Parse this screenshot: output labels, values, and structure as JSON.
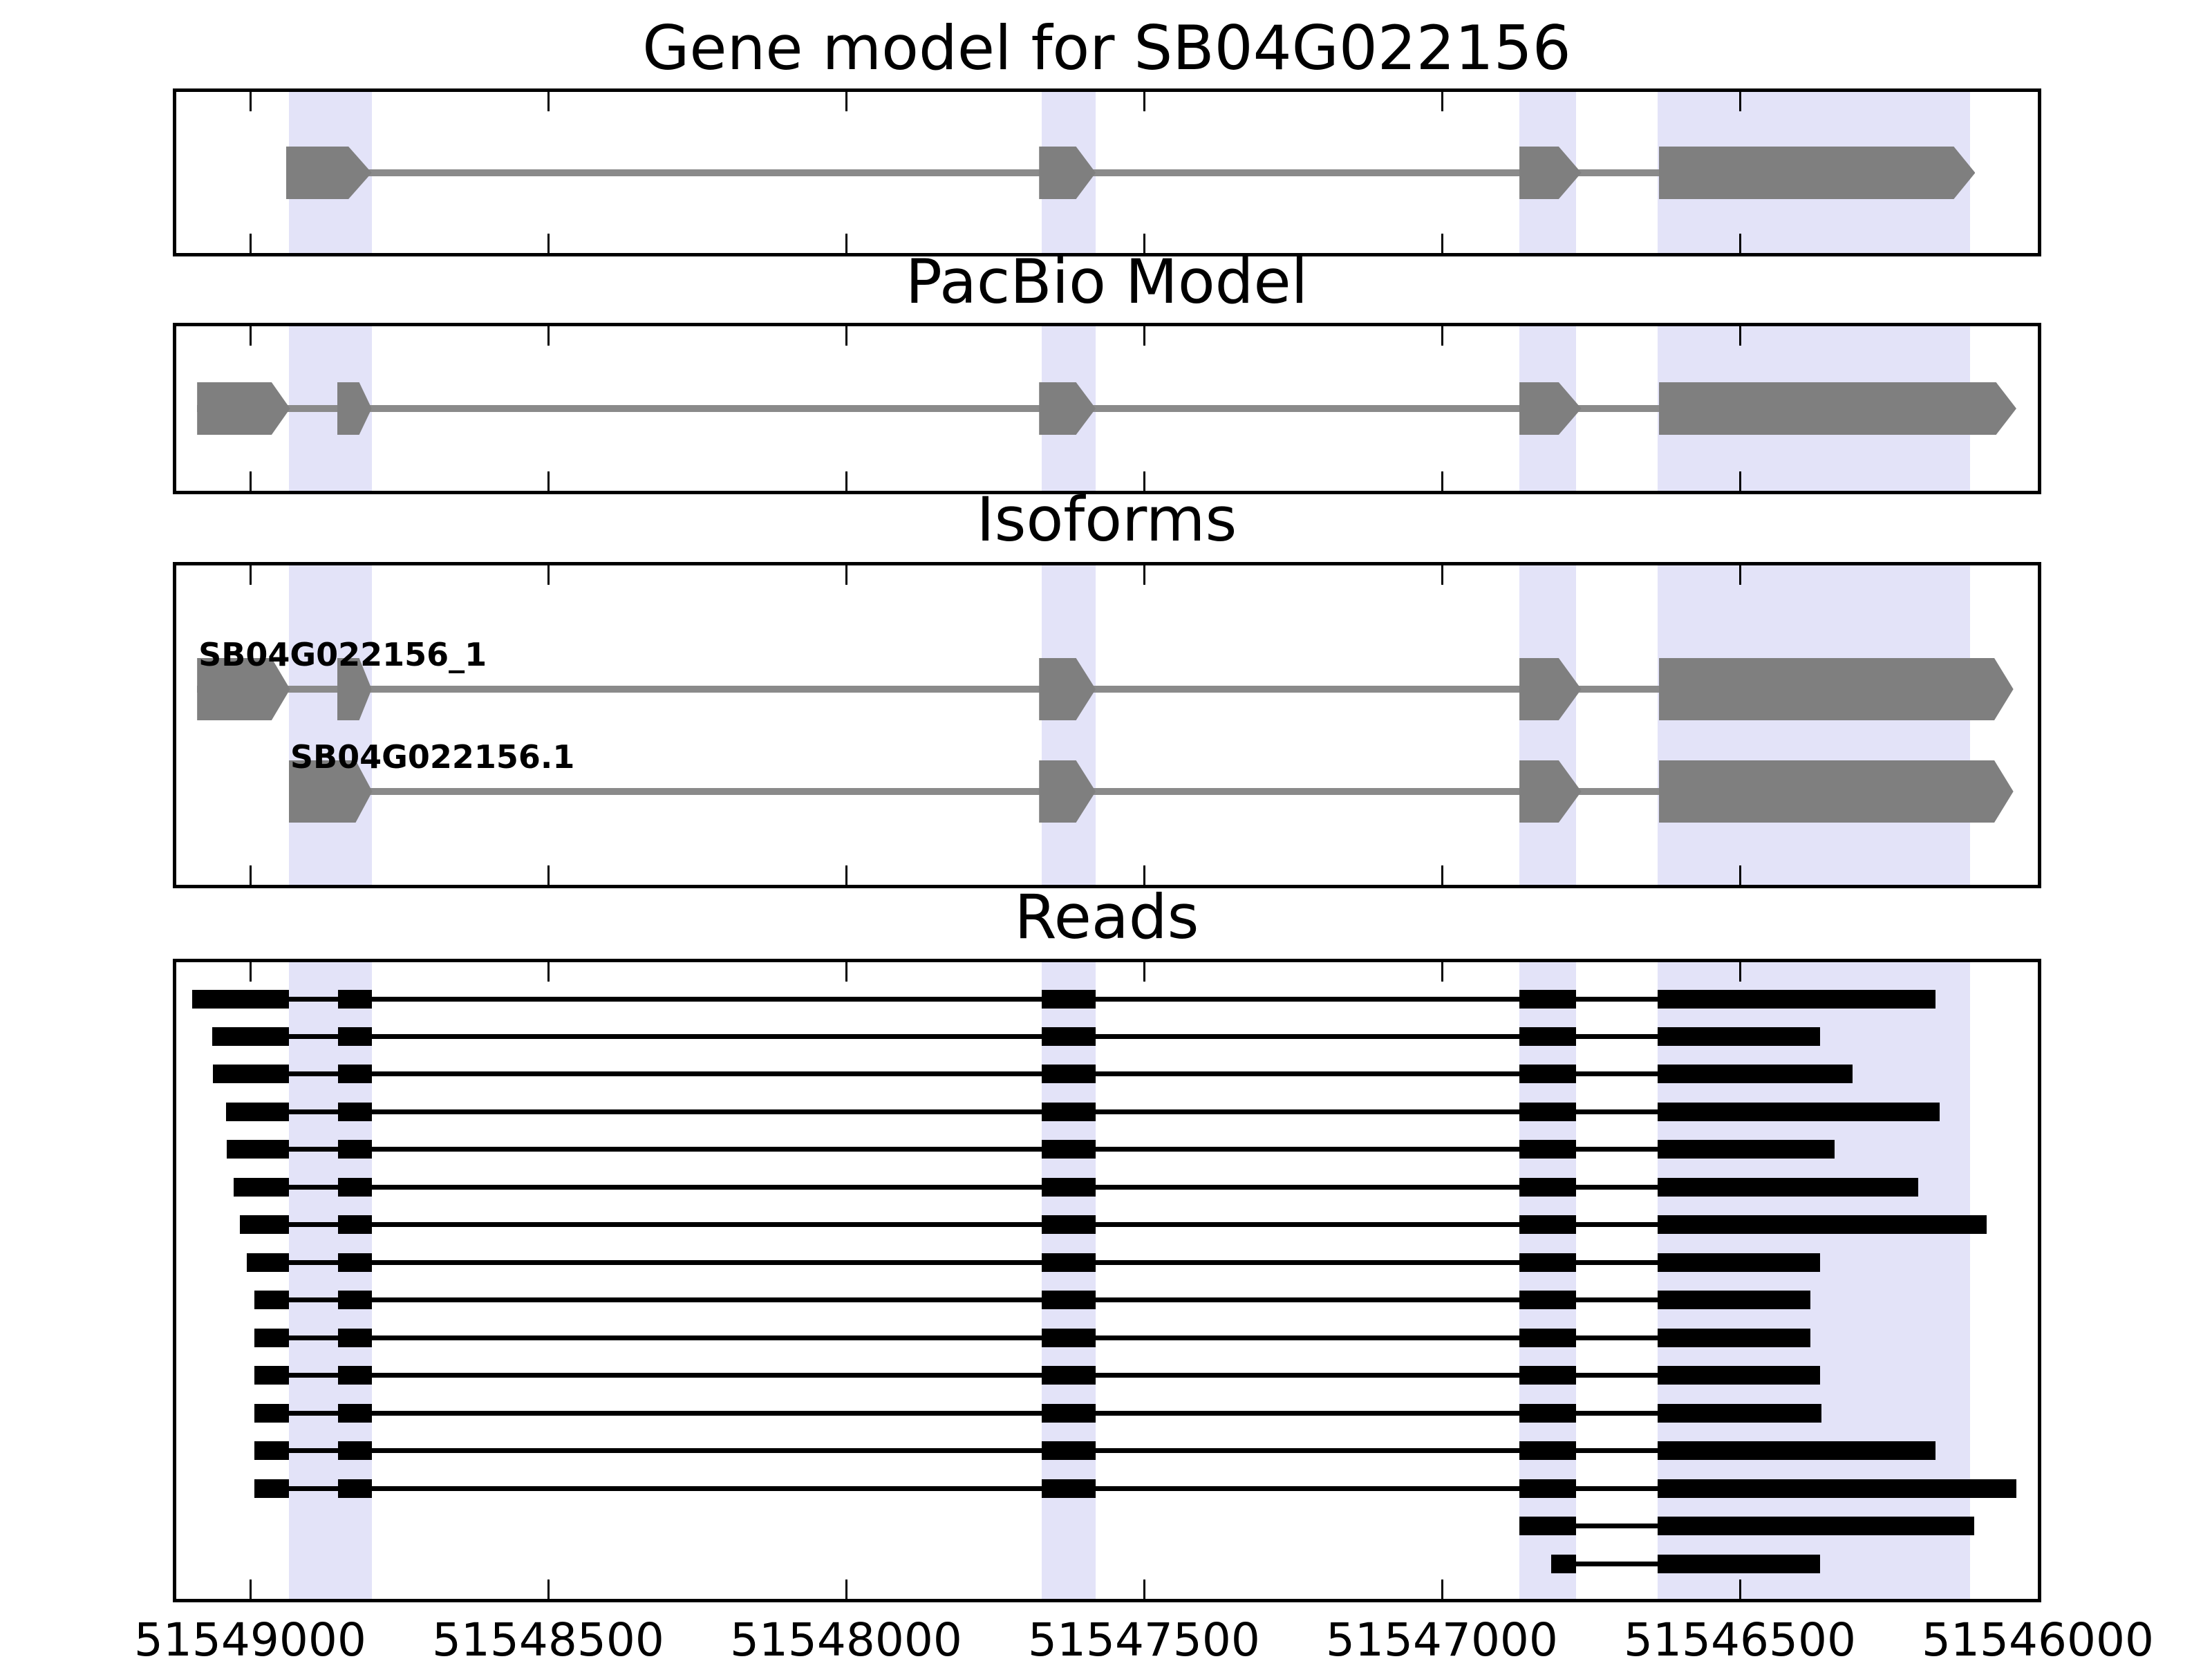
{
  "titles": {
    "panel1": "Gene model for SB04G022156",
    "panel2": "PacBio Model",
    "panel3": "Isoforms",
    "panel4": "Reads"
  },
  "isoform_labels": [
    "SB04G022156_1",
    "SB04G022156.1"
  ],
  "colors": {
    "background": "#ffffff",
    "exon_gray": "#7f7f7f",
    "model_line_gray": "#8a8a8a",
    "read_black": "#000000",
    "highlight_band": "#e3e3f8",
    "axis_black": "#000000"
  },
  "chart_data": {
    "type": "genome-gene-model-tracks",
    "title": "Gene model for SB04G022156",
    "panels": [
      "Gene model for SB04G022156",
      "PacBio Model",
      "Isoforms",
      "Reads"
    ],
    "axis": {
      "xlim": [
        51549124,
        51546000
      ],
      "reversed": true,
      "tick_values": [
        51549000,
        51548500,
        51548000,
        51547500,
        51547000,
        51546500,
        51546000
      ],
      "tick_labels": [
        "51549000",
        "51548500",
        "51548000",
        "51547500",
        "51547000",
        "51546500",
        "51546000"
      ]
    },
    "highlight_regions": [
      [
        51548935,
        51548796
      ],
      [
        51547672,
        51547581
      ],
      [
        51546870,
        51546775
      ],
      [
        51546638,
        51546114
      ]
    ],
    "gene_model": {
      "exons": [
        {
          "l": 51548940,
          "r": 51548835,
          "tip": 51548796
        },
        {
          "l": 51547676,
          "r": 51547614,
          "tip": 51547581
        },
        {
          "l": 51546870,
          "r": 51546804,
          "tip": 51546766
        },
        {
          "l": 51546636,
          "r": 51546141,
          "tip": 51546105
        }
      ]
    },
    "pacbio_model": {
      "exons": [
        {
          "l": 51549089,
          "r": 51548964,
          "tip": 51548933
        },
        {
          "l": 51548854,
          "r": 51548817,
          "tip": 51548796
        },
        {
          "l": 51547676,
          "r": 51547614,
          "tip": 51547581
        },
        {
          "l": 51546870,
          "r": 51546804,
          "tip": 51546766
        },
        {
          "l": 51546636,
          "r": 51546070,
          "tip": 51546036
        }
      ]
    },
    "isoforms": [
      {
        "name": "SB04G022156_1",
        "exons": [
          {
            "l": 51549089,
            "r": 51548964,
            "tip": 51548933
          },
          {
            "l": 51548854,
            "r": 51548817,
            "tip": 51548796
          },
          {
            "l": 51547676,
            "r": 51547614,
            "tip": 51547581
          },
          {
            "l": 51546870,
            "r": 51546804,
            "tip": 51546766
          },
          {
            "l": 51546636,
            "r": 51546073,
            "tip": 51546041
          }
        ]
      },
      {
        "name": "SB04G022156.1",
        "exons": [
          {
            "l": 51548935,
            "r": 51548823,
            "tip": 51548795
          },
          {
            "l": 51547676,
            "r": 51547614,
            "tip": 51547581
          },
          {
            "l": 51546870,
            "r": 51546804,
            "tip": 51546766
          },
          {
            "l": 51546636,
            "r": 51546073,
            "tip": 51546041
          }
        ]
      }
    ],
    "reads": {
      "shared_exon_boundaries": {
        "exon1_end": 51548935,
        "exon2": [
          51548852,
          51548796
        ],
        "exon3": [
          51547672,
          51547581
        ],
        "exon4": [
          51546870,
          51546775
        ],
        "exon5_start": 51546638
      },
      "rows": [
        {
          "start": 51549097,
          "end": 51546172
        },
        {
          "start": 51549064,
          "end": 51546365
        },
        {
          "start": 51549063,
          "end": 51546311
        },
        {
          "start": 51549041,
          "end": 51546165
        },
        {
          "start": 51549039,
          "end": 51546341
        },
        {
          "start": 51549028,
          "end": 51546201
        },
        {
          "start": 51549017,
          "end": 51546086
        },
        {
          "start": 51549006,
          "end": 51546365
        },
        {
          "start": 51548993,
          "end": 51546382
        },
        {
          "start": 51548993,
          "end": 51546382
        },
        {
          "start": 51548993,
          "end": 51546365
        },
        {
          "start": 51548993,
          "end": 51546363
        },
        {
          "start": 51548993,
          "end": 51546172
        },
        {
          "start": 51548993,
          "end": 51546036
        },
        {
          "start": 51546870,
          "end": 51546107,
          "skip_head": true
        },
        {
          "start": 51546817,
          "end": 51546365,
          "skip_head": true
        }
      ]
    }
  }
}
